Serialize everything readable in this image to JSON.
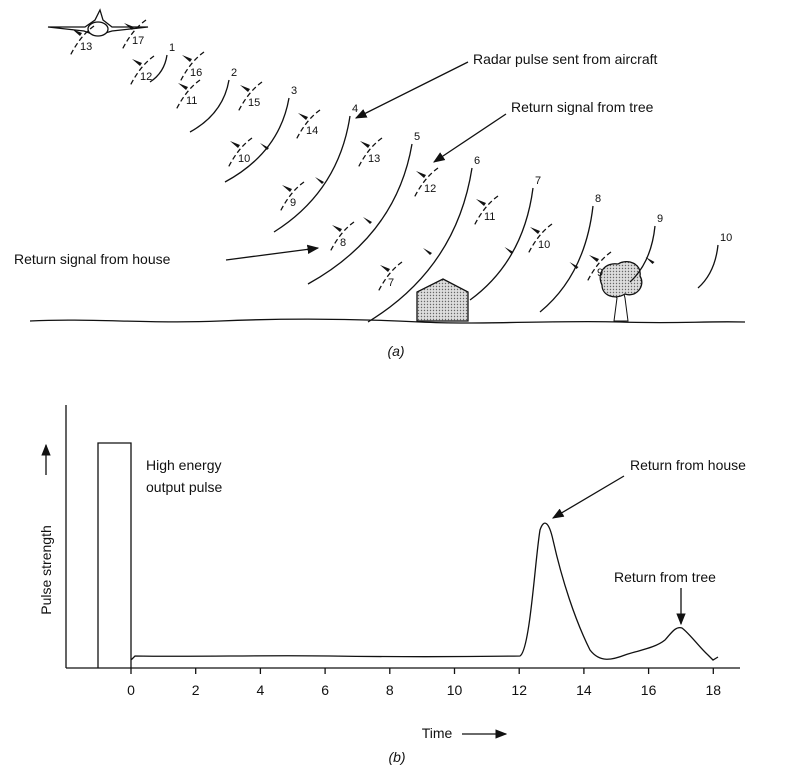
{
  "panel_a": {
    "caption": "(a)",
    "annotations": {
      "pulse": "Radar pulse sent from aircraft",
      "tree": "Return signal from tree",
      "house": "Return signal from house"
    },
    "pulse_labels": [
      1,
      2,
      3,
      4,
      5,
      6,
      7,
      8,
      9,
      10
    ],
    "return_labels": [
      13,
      17,
      12,
      16,
      11,
      15,
      10,
      14,
      9,
      13,
      8,
      12,
      7,
      11,
      10,
      9
    ]
  },
  "panel_b": {
    "caption": "(b)",
    "y_label": "Pulse strength",
    "x_label": "Time",
    "xticks": [
      0,
      2,
      4,
      6,
      8,
      10,
      12,
      14,
      16,
      18
    ],
    "annotations": {
      "output": [
        "High energy",
        "output pulse"
      ],
      "house": "Return from house",
      "tree": "Return from tree"
    }
  }
}
